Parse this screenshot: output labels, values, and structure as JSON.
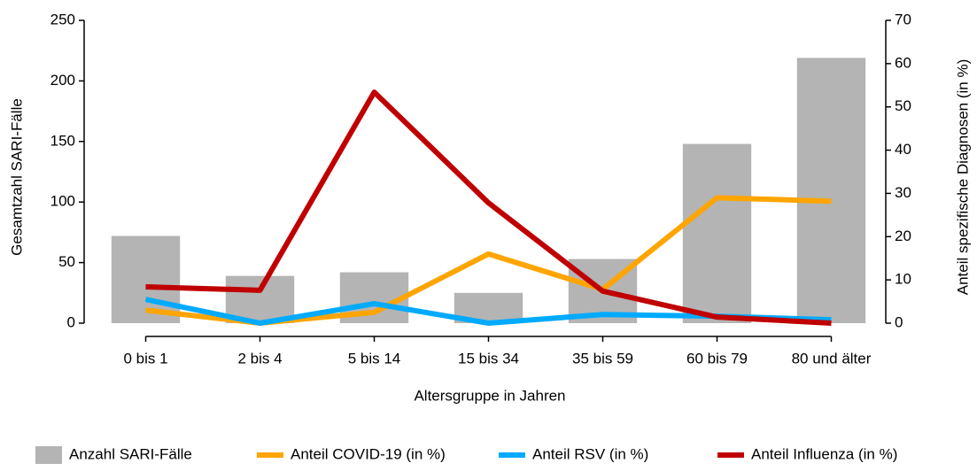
{
  "chart_data": {
    "type": "bar-line",
    "x_label": "Altersgruppe in Jahren",
    "y_label": "Gesamtzahl SARI-Fälle",
    "y2_label": "Anteil spezifische Diagnosen (in %)",
    "categories": [
      "0 bis 1",
      "2 bis 4",
      "5 bis 14",
      "15 bis 34",
      "35 bis 59",
      "60 bis 79",
      "80 und älter"
    ],
    "ylim": [
      0,
      250
    ],
    "yticks": [
      0,
      50,
      100,
      150,
      200,
      250
    ],
    "y2lim": [
      0,
      70
    ],
    "y2ticks": [
      0,
      10,
      20,
      30,
      40,
      50,
      60,
      70
    ],
    "series": [
      {
        "name": "Anzahl SARI-Fälle",
        "type": "bar",
        "color": "#b4b4b4",
        "values": [
          72,
          39,
          42,
          25,
          53,
          148,
          219
        ]
      },
      {
        "name": "Anteil COVID-19 (in %)",
        "type": "line",
        "axis": "y2",
        "color": "#ffa500",
        "values": [
          3,
          0,
          2.5,
          16,
          7.8,
          29,
          28.2
        ]
      },
      {
        "name": "Anteil RSV (in %)",
        "type": "line",
        "axis": "y2",
        "color": "#00aaff",
        "values": [
          5.5,
          0,
          4.5,
          0,
          2,
          1.6,
          0.8
        ]
      },
      {
        "name": "Anteil Influenza (in %)",
        "type": "line",
        "axis": "y2",
        "color": "#c00000",
        "values": [
          8.4,
          7.6,
          53.4,
          27.8,
          7.4,
          1.4,
          0
        ]
      }
    ]
  }
}
